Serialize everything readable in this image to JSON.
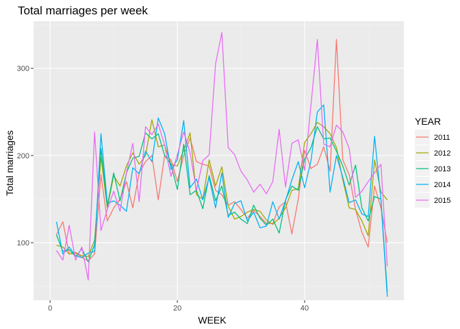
{
  "chart_data": {
    "type": "line",
    "title": "Total marriages per week",
    "xlabel": "WEEK",
    "ylabel": "Total marriages",
    "xlim": [
      -2.6,
      55.6
    ],
    "ylim": [
      34,
      354
    ],
    "xticks": [
      0,
      20,
      40
    ],
    "yticks": [
      100,
      200,
      300
    ],
    "grid": true,
    "legend": {
      "title": "YEAR",
      "placement": "right"
    },
    "series": [
      {
        "name": "2011",
        "color": "#f8766d",
        "x": [
          1,
          2,
          3,
          4,
          5,
          6,
          7,
          8,
          9,
          10,
          11,
          12,
          13,
          14,
          15,
          16,
          17,
          18,
          19,
          20,
          21,
          22,
          23,
          24,
          25,
          26,
          27,
          28,
          29,
          30,
          31,
          32,
          33,
          34,
          35,
          36,
          37,
          38,
          39,
          40,
          41,
          42,
          43,
          44,
          45,
          46,
          47,
          48,
          49,
          50,
          51,
          52,
          53
        ],
        "y": [
          109,
          124,
          87,
          89,
          83,
          79,
          87,
          178,
          125,
          140,
          150,
          170,
          140,
          180,
          193,
          200,
          149,
          200,
          195,
          170,
          200,
          220,
          193,
          190,
          188,
          160,
          155,
          143,
          147,
          138,
          128,
          137,
          130,
          122,
          122,
          141,
          147,
          110,
          150,
          206,
          185,
          190,
          210,
          182,
          333,
          195,
          178,
          138,
          112,
          95,
          165,
          140,
          100
        ]
      },
      {
        "name": "2012",
        "color": "#a3a500",
        "x": [
          1,
          2,
          3,
          4,
          5,
          6,
          7,
          8,
          9,
          10,
          11,
          12,
          13,
          14,
          15,
          16,
          17,
          18,
          19,
          20,
          21,
          22,
          23,
          24,
          25,
          26,
          27,
          28,
          29,
          30,
          31,
          32,
          33,
          34,
          35,
          36,
          37,
          38,
          39,
          40,
          41,
          42,
          43,
          44,
          45,
          46,
          47,
          48,
          49,
          50,
          51,
          52,
          53
        ],
        "y": [
          97,
          95,
          87,
          88,
          85,
          84,
          103,
          198,
          140,
          177,
          165,
          188,
          203,
          190,
          200,
          241,
          210,
          212,
          190,
          188,
          206,
          226,
          155,
          150,
          195,
          165,
          187,
          142,
          127,
          130,
          135,
          138,
          136,
          126,
          121,
          128,
          140,
          160,
          162,
          215,
          225,
          238,
          233,
          225,
          209,
          172,
          140,
          138,
          125,
          108,
          195,
          158,
          149
        ]
      },
      {
        "name": "2013",
        "color": "#00bf7d",
        "x": [
          1,
          2,
          3,
          4,
          5,
          6,
          7,
          8,
          9,
          10,
          11,
          12,
          13,
          14,
          15,
          16,
          17,
          18,
          19,
          20,
          21,
          22,
          23,
          24,
          25,
          26,
          27,
          28,
          29,
          30,
          31,
          32,
          33,
          34,
          35,
          36,
          37,
          38,
          39,
          40,
          41,
          42,
          43,
          44,
          45,
          46,
          47,
          48,
          49,
          50,
          51,
          52,
          53
        ],
        "y": [
          109,
          90,
          92,
          84,
          93,
          78,
          98,
          208,
          142,
          180,
          148,
          180,
          197,
          199,
          226,
          219,
          225,
          200,
          190,
          161,
          213,
          155,
          160,
          139,
          177,
          148,
          165,
          131,
          135,
          127,
          122,
          143,
          128,
          120,
          127,
          111,
          149,
          165,
          160,
          196,
          209,
          233,
          219,
          220,
          205,
          188,
          166,
          189,
          140,
          125,
          153,
          150,
          43
        ]
      },
      {
        "name": "2014",
        "color": "#00b0f6",
        "x": [
          1,
          2,
          3,
          4,
          5,
          6,
          7,
          8,
          9,
          10,
          11,
          12,
          13,
          14,
          15,
          16,
          17,
          18,
          19,
          20,
          21,
          22,
          23,
          24,
          25,
          26,
          27,
          28,
          29,
          30,
          31,
          32,
          33,
          34,
          35,
          36,
          37,
          38,
          39,
          40,
          41,
          42,
          43,
          44,
          45,
          46,
          47,
          48,
          49,
          50,
          51,
          52,
          53
        ],
        "y": [
          124,
          87,
          95,
          85,
          83,
          88,
          90,
          225,
          145,
          148,
          143,
          136,
          186,
          179,
          205,
          193,
          243,
          225,
          184,
          195,
          240,
          163,
          173,
          149,
          175,
          140,
          180,
          129,
          145,
          148,
          125,
          135,
          117,
          119,
          147,
          127,
          148,
          172,
          193,
          163,
          194,
          250,
          258,
          158,
          200,
          175,
          146,
          149,
          133,
          130,
          222,
          149,
          38
        ]
      },
      {
        "name": "2015",
        "color": "#e76bf3",
        "x": [
          1,
          2,
          3,
          4,
          5,
          6,
          7,
          8,
          9,
          10,
          11,
          12,
          13,
          14,
          15,
          16,
          17,
          18,
          19,
          20,
          21,
          22,
          23,
          24,
          25,
          26,
          27,
          28,
          29,
          30,
          31,
          32,
          33,
          34,
          35,
          36,
          37,
          38,
          39,
          40,
          41,
          42,
          43,
          44,
          45,
          46,
          47,
          48,
          49,
          50,
          51,
          52,
          53
        ],
        "y": [
          91,
          80,
          120,
          80,
          95,
          57,
          227,
          114,
          138,
          159,
          136,
          180,
          214,
          147,
          233,
          224,
          236,
          212,
          176,
          201,
          227,
          203,
          160,
          194,
          201,
          305,
          341,
          209,
          201,
          182,
          172,
          158,
          167,
          156,
          170,
          230,
          164,
          214,
          218,
          183,
          258,
          333,
          213,
          210,
          235,
          227,
          208,
          152,
          159,
          170,
          180,
          190,
          73
        ]
      }
    ]
  }
}
